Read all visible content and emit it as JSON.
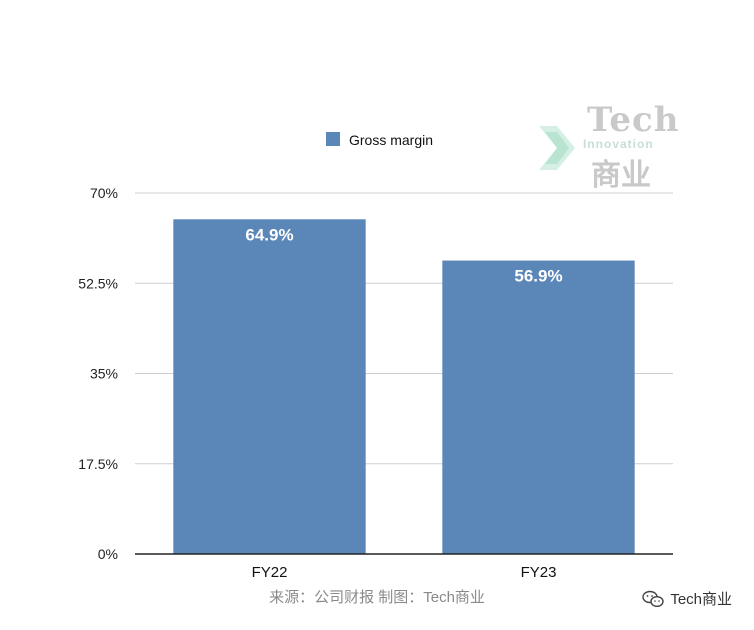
{
  "chart_data": {
    "type": "bar",
    "categories": [
      "FY22",
      "FY23"
    ],
    "series": [
      {
        "name": "Gross margin",
        "values": [
          64.9,
          56.9
        ],
        "color": "#5b86b8"
      }
    ],
    "data_labels": [
      "64.9%",
      "56.9%"
    ],
    "y_ticks": [
      "0%",
      "17.5%",
      "35%",
      "52.5%",
      "70%"
    ],
    "ylim": [
      0,
      70
    ],
    "grid": true,
    "legend_position": "top-center"
  },
  "source_note": "来源：公司财报 制图：Tech商业",
  "watermark": {
    "line1": "Tech",
    "line2": "Innovation",
    "line3": "商业"
  },
  "brand": {
    "icon": "wechat-icon",
    "label": "Tech商业"
  }
}
